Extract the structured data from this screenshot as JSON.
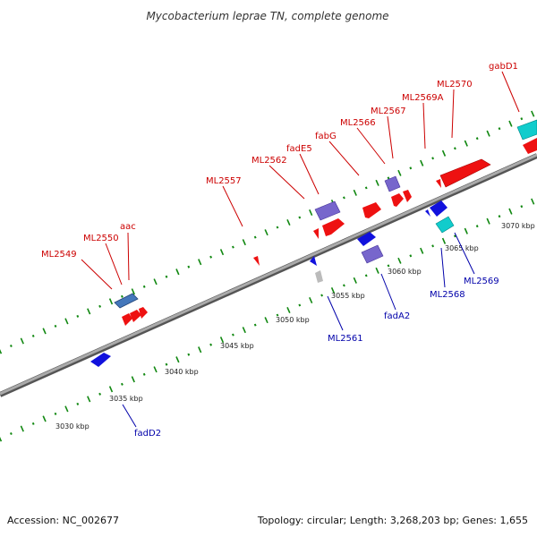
{
  "title": "Mycobacterium leprae TN, complete genome",
  "footer": {
    "accession": "Accession: NC_002677",
    "summary": "Topology: circular; Length: 3,268,203 bp; Genes: 1,655"
  },
  "scale_labels": [
    "3030 kbp",
    "3035 kbp",
    "3040 kbp",
    "3045 kbp",
    "3050 kbp",
    "3055 kbp",
    "3060 kbp",
    "3065 kbp",
    "3070 kbp"
  ],
  "forward_genes": [
    {
      "label": "ML2549"
    },
    {
      "label": "ML2550"
    },
    {
      "label": "aac"
    },
    {
      "label": "ML2557"
    },
    {
      "label": "ML2562"
    },
    {
      "label": "fadE5"
    },
    {
      "label": "fabG"
    },
    {
      "label": "ML2566"
    },
    {
      "label": "ML2567"
    },
    {
      "label": "ML2569A"
    },
    {
      "label": "ML2570"
    },
    {
      "label": "gabD1"
    }
  ],
  "reverse_genes": [
    {
      "label": "fadD2"
    },
    {
      "label": "ML2561"
    },
    {
      "label": "fadA2"
    },
    {
      "label": "ML2568"
    },
    {
      "label": "ML2569"
    }
  ],
  "colors": {
    "forward_label": "#cc0000",
    "reverse_label": "#0000aa",
    "forward_cds": "#ee1111",
    "reverse_cds": "#1111dd",
    "rna_purple": "#7766cc",
    "steelblue": "#4477bb",
    "cyan": "#11cccc",
    "tick": "#118811",
    "backbone": "#888888"
  }
}
